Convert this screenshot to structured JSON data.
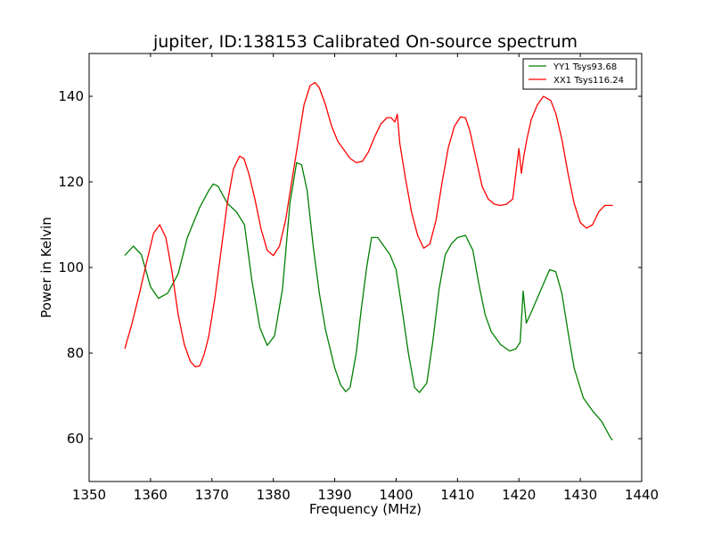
{
  "chart_data": {
    "type": "line",
    "title": "jupiter, ID:138153 Calibrated On-source spectrum",
    "xlabel": "Frequency (MHz)",
    "ylabel": "Power in Kelvin",
    "xlim": [
      1350,
      1440
    ],
    "ylim": [
      50,
      150
    ],
    "xticks": [
      1350,
      1360,
      1370,
      1380,
      1390,
      1400,
      1410,
      1420,
      1430,
      1440
    ],
    "yticks": [
      60,
      80,
      100,
      120,
      140
    ],
    "grid": false,
    "legend_position": "top-right",
    "series": [
      {
        "name": "YY1 Tsys93.68",
        "color": "#008000",
        "x": [
          1355.8,
          1357.2,
          1358.5,
          1360.0,
          1361.3,
          1362.8,
          1364.5,
          1366.0,
          1368.0,
          1369.5,
          1370.2,
          1371.0,
          1372.5,
          1374.0,
          1375.3,
          1376.5,
          1377.8,
          1379.0,
          1380.2,
          1381.5,
          1382.7,
          1383.8,
          1384.6,
          1385.5,
          1386.5,
          1387.5,
          1388.5,
          1390.0,
          1391.0,
          1391.8,
          1392.5,
          1393.5,
          1394.3,
          1395.2,
          1396.0,
          1397.0,
          1398.0,
          1399.0,
          1400.0,
          1401.0,
          1402.0,
          1403.0,
          1403.8,
          1405.0,
          1406.0,
          1407.0,
          1408.0,
          1409.0,
          1410.0,
          1411.3,
          1412.5,
          1413.5,
          1414.5,
          1415.5,
          1417.0,
          1418.5,
          1419.5,
          1420.2,
          1420.7,
          1421.2,
          1422.0,
          1423.5,
          1425.0,
          1426.0,
          1427.0,
          1428.0,
          1429.0,
          1430.5,
          1432.0,
          1433.5,
          1435.0,
          1435.3
        ],
        "values": [
          102.8,
          105.0,
          103.0,
          95.5,
          92.8,
          94.0,
          98.5,
          107.0,
          114.0,
          118.0,
          119.5,
          119.0,
          115.0,
          113.0,
          110.0,
          97.0,
          86.0,
          81.8,
          84.0,
          95.0,
          115.0,
          124.5,
          124.0,
          118.0,
          105.0,
          94.0,
          85.5,
          76.5,
          72.5,
          71.0,
          72.0,
          80.0,
          90.0,
          100.0,
          107.0,
          107.0,
          105.0,
          103.0,
          99.5,
          90.0,
          80.0,
          72.0,
          70.8,
          73.0,
          83.0,
          95.0,
          103.0,
          105.5,
          107.0,
          107.5,
          104.0,
          96.0,
          89.0,
          85.0,
          82.0,
          80.5,
          81.0,
          82.5,
          94.5,
          87.0,
          89.5,
          94.5,
          99.5,
          99.0,
          94.0,
          85.0,
          76.5,
          69.5,
          66.5,
          64.0,
          60.0,
          59.7
        ]
      },
      {
        "name": "XX1 Tsys116.24",
        "color": "#ff0000",
        "x": [
          1355.8,
          1357.0,
          1358.2,
          1359.5,
          1360.5,
          1361.5,
          1362.5,
          1363.5,
          1364.5,
          1365.5,
          1366.5,
          1367.3,
          1368.0,
          1368.7,
          1369.5,
          1370.5,
          1371.5,
          1372.5,
          1373.5,
          1374.5,
          1375.2,
          1376.0,
          1377.0,
          1378.0,
          1379.0,
          1380.0,
          1381.0,
          1382.0,
          1383.0,
          1384.0,
          1385.0,
          1386.0,
          1386.8,
          1387.5,
          1388.5,
          1389.5,
          1390.5,
          1391.5,
          1392.5,
          1393.5,
          1394.5,
          1395.5,
          1396.5,
          1397.5,
          1398.5,
          1399.2,
          1399.8,
          1400.2,
          1400.6,
          1401.5,
          1402.5,
          1403.5,
          1404.5,
          1405.5,
          1406.5,
          1407.5,
          1408.5,
          1409.5,
          1410.5,
          1411.3,
          1412.0,
          1413.0,
          1414.0,
          1415.0,
          1416.0,
          1417.0,
          1418.0,
          1419.0,
          1420.0,
          1420.4,
          1420.8,
          1421.3,
          1422.0,
          1423.0,
          1424.0,
          1425.2,
          1426.0,
          1427.0,
          1428.0,
          1429.0,
          1430.0,
          1431.0,
          1432.0,
          1433.0,
          1434.0,
          1435.0,
          1435.3
        ],
        "values": [
          81.0,
          87.0,
          94.0,
          102.0,
          108.0,
          110.0,
          107.0,
          99.0,
          89.0,
          82.0,
          78.0,
          76.8,
          77.0,
          79.5,
          84.0,
          93.0,
          104.0,
          115.0,
          123.0,
          126.0,
          125.5,
          122.0,
          116.0,
          109.0,
          104.0,
          102.8,
          105.0,
          111.0,
          120.0,
          129.0,
          138.0,
          142.5,
          143.2,
          142.0,
          138.0,
          133.0,
          129.5,
          127.5,
          125.5,
          124.5,
          124.8,
          127.0,
          130.5,
          133.5,
          135.0,
          135.0,
          134.0,
          135.8,
          129.0,
          121.0,
          113.0,
          107.5,
          104.5,
          105.5,
          111.0,
          120.0,
          128.0,
          133.0,
          135.2,
          135.0,
          132.0,
          125.5,
          119.0,
          116.0,
          114.8,
          114.5,
          114.8,
          116.0,
          127.8,
          122.0,
          126.0,
          130.0,
          134.5,
          138.0,
          140.0,
          139.0,
          136.0,
          130.0,
          122.0,
          115.0,
          110.5,
          109.2,
          110.0,
          113.0,
          114.5,
          114.5,
          114.5
        ]
      }
    ]
  }
}
